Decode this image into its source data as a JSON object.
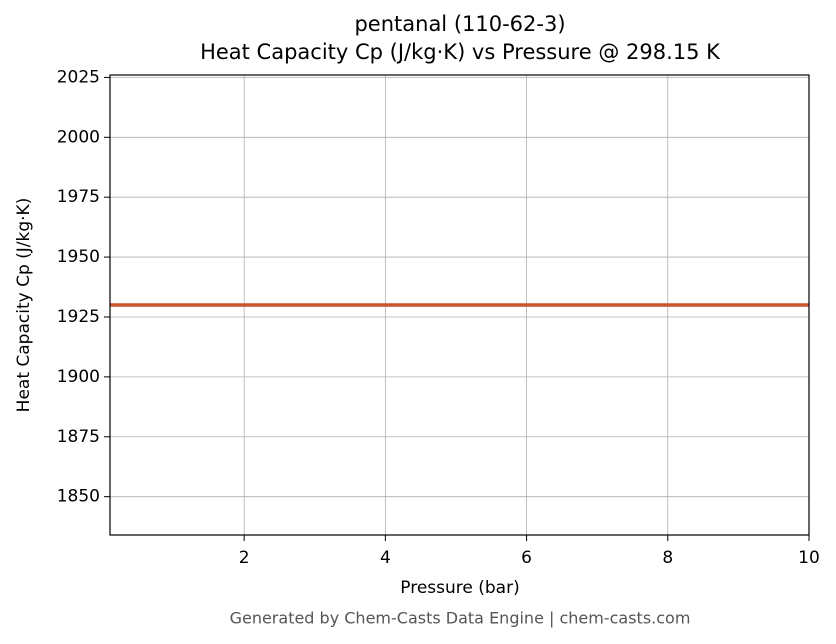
{
  "chart_data": {
    "type": "line",
    "title": "pentanal (110-62-3)",
    "subtitle": "Heat Capacity Cp (J/kg·K) vs Pressure @ 298.15 K",
    "x_label": "Pressure (bar)",
    "y_label": "Heat Capacity Cp (J/kg·K)",
    "x": [
      0.1,
      10
    ],
    "series": [
      {
        "name": "Heat Capacity Cp",
        "color": "#c8552b",
        "values": [
          1930,
          1930
        ]
      }
    ],
    "xlim": [
      0.1,
      10
    ],
    "xticks": [
      2,
      4,
      6,
      8,
      10
    ],
    "ylim": [
      1834,
      2026
    ],
    "yticks": [
      1850,
      1875,
      1900,
      1925,
      1950,
      1975,
      2000,
      2025
    ],
    "grid": true
  },
  "footer": "Generated by Chem-Casts Data Engine | chem-casts.com"
}
